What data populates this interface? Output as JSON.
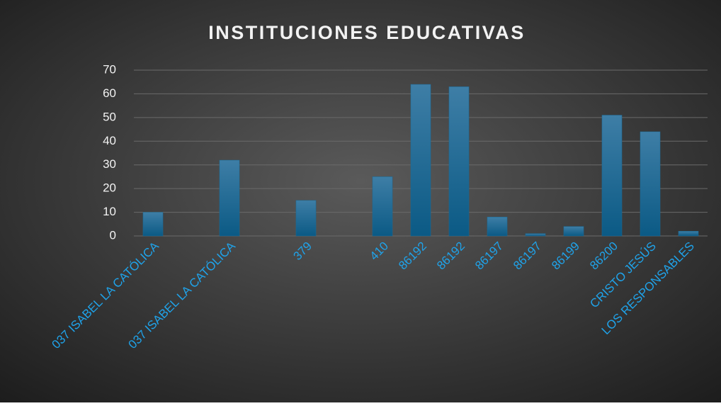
{
  "chart_data": {
    "type": "bar",
    "title": "INSTITUCIONES EDUCATIVAS",
    "categories": [
      "037 ISABEL LA CATÓLICA",
      null,
      "037 ISABEL LA CATÓLICA",
      null,
      "379",
      null,
      "410",
      "86192",
      "86192",
      "86197",
      "86197",
      "86199",
      "86200",
      "CRISTO JESÚS",
      "LOS RESPONSABLES"
    ],
    "values": [
      10,
      null,
      32,
      null,
      15,
      null,
      25,
      64,
      63,
      8,
      1,
      4,
      51,
      44,
      2
    ],
    "color": "#1a6a96",
    "ylim": [
      0,
      70
    ],
    "yticks": [
      0,
      10,
      20,
      30,
      40,
      50,
      60,
      70
    ],
    "grid": true
  }
}
